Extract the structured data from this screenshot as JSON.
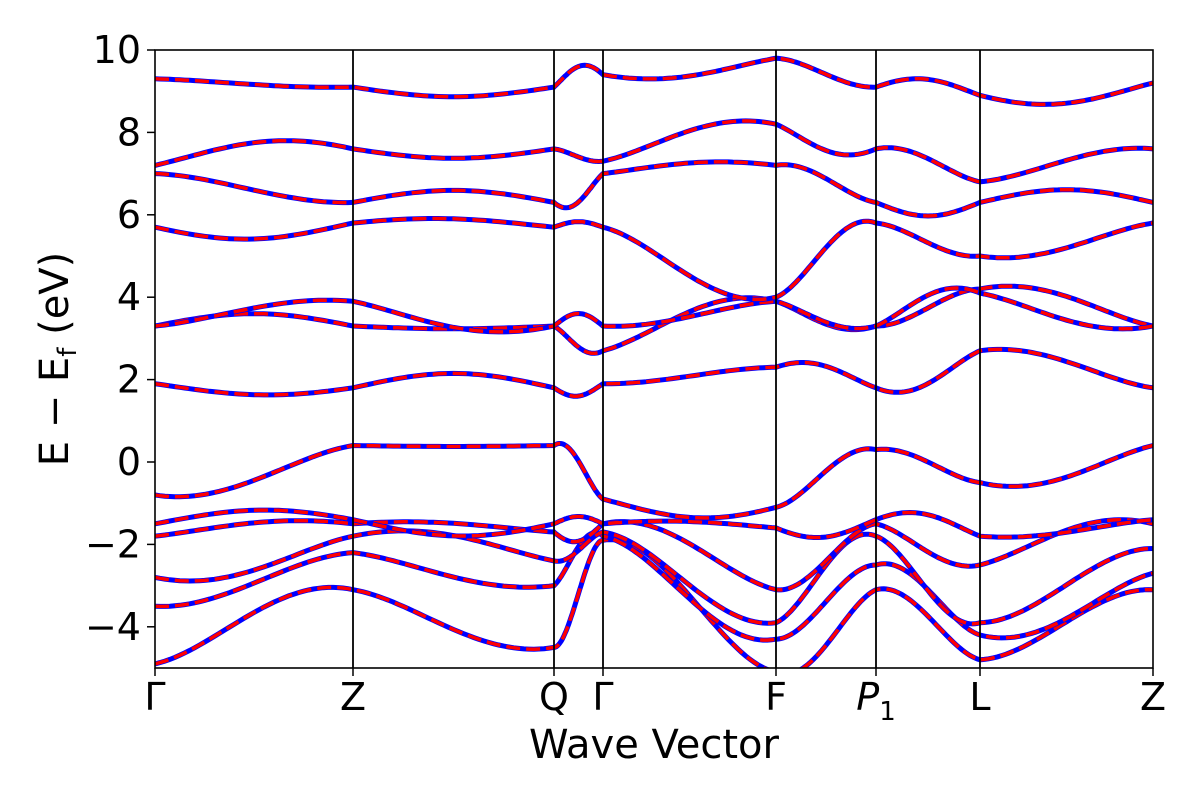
{
  "chart_data": {
    "type": "line",
    "title": "",
    "xlabel": "Wave Vector",
    "ylabel": "E − E",
    "ylabel_sub": "f",
    "ylabel_unit": " (eV)",
    "ylim": [
      -5,
      10
    ],
    "yticks": [
      {
        "value": 10,
        "label": "10"
      },
      {
        "value": 8,
        "label": "8"
      },
      {
        "value": 6,
        "label": "6"
      },
      {
        "value": 4,
        "label": "4"
      },
      {
        "value": 2,
        "label": "2"
      },
      {
        "value": 0,
        "label": "0"
      },
      {
        "value": -2,
        "label": "−2"
      },
      {
        "value": -4,
        "label": "−4"
      }
    ],
    "kpath": [
      {
        "label": "Γ",
        "sub": ""
      },
      {
        "label": "Z",
        "sub": ""
      },
      {
        "label": "Q",
        "sub": ""
      },
      {
        "label": "Γ",
        "sub": ""
      },
      {
        "label": "F",
        "sub": ""
      },
      {
        "label": "P",
        "sub": "1",
        "italic": true
      },
      {
        "label": "L",
        "sub": ""
      },
      {
        "label": "Z",
        "sub": ""
      }
    ],
    "line_colors": {
      "overlay_solid": "#ff0000",
      "underlay_dashed": "#0000ff"
    },
    "grid": false,
    "legend": "none",
    "bands": [
      {
        "name": "",
        "x": [
          0,
          1,
          2,
          3,
          4,
          5,
          6,
          7
        ],
        "y": [
          -4.9,
          -3.1,
          -4.5,
          -1.9,
          -5.1,
          -3.1,
          -4.8,
          -3.1
        ]
      },
      {
        "name": "",
        "x": [
          0,
          1,
          2,
          3,
          4,
          5,
          6,
          7
        ],
        "y": [
          -3.5,
          -2.2,
          -3.0,
          -1.8,
          -4.3,
          -2.5,
          -4.2,
          -2.7
        ]
      },
      {
        "name": "",
        "x": [
          0,
          1,
          2,
          3,
          4,
          5,
          6,
          7
        ],
        "y": [
          -2.8,
          -1.8,
          -2.4,
          -1.7,
          -3.9,
          -1.8,
          -3.9,
          -2.1
        ]
      },
      {
        "name": "",
        "x": [
          0,
          1,
          2,
          3,
          4,
          5,
          6,
          7
        ],
        "y": [
          -1.8,
          -1.5,
          -1.7,
          -1.5,
          -3.1,
          -1.5,
          -2.5,
          -1.5
        ]
      },
      {
        "name": "",
        "x": [
          0,
          1,
          2,
          3,
          4,
          5,
          6,
          7
        ],
        "y": [
          -1.5,
          -1.4,
          -1.5,
          -1.5,
          -1.6,
          -1.4,
          -1.8,
          -1.4
        ]
      },
      {
        "name": "",
        "x": [
          0,
          1,
          2,
          3,
          4,
          5,
          6,
          7
        ],
        "y": [
          -0.8,
          0.4,
          0.4,
          -0.9,
          -1.1,
          0.3,
          -0.5,
          0.4
        ]
      },
      {
        "name": "",
        "x": [
          0,
          1,
          2,
          3,
          4,
          5,
          6,
          7
        ],
        "y": [
          1.9,
          1.8,
          1.8,
          1.9,
          2.3,
          1.8,
          2.7,
          1.8
        ]
      },
      {
        "name": "",
        "x": [
          0,
          1,
          2,
          3,
          4,
          5,
          6,
          7
        ],
        "y": [
          3.3,
          3.3,
          3.3,
          2.7,
          3.9,
          3.3,
          4.2,
          3.3
        ]
      },
      {
        "name": "",
        "x": [
          0,
          1,
          2,
          3,
          4,
          5,
          6,
          7
        ],
        "y": [
          3.3,
          3.9,
          3.3,
          3.3,
          3.9,
          3.3,
          4.1,
          3.3
        ]
      },
      {
        "name": "",
        "x": [
          0,
          1,
          2,
          3,
          4,
          5,
          6,
          7
        ],
        "y": [
          5.7,
          5.8,
          5.7,
          5.7,
          4.0,
          5.8,
          5.0,
          5.8
        ]
      },
      {
        "name": "",
        "x": [
          0,
          1,
          2,
          3,
          4,
          5,
          6,
          7
        ],
        "y": [
          7.0,
          6.3,
          6.3,
          7.0,
          7.2,
          6.3,
          6.3,
          6.3
        ]
      },
      {
        "name": "",
        "x": [
          0,
          1,
          2,
          3,
          4,
          5,
          6,
          7
        ],
        "y": [
          7.2,
          7.6,
          7.6,
          7.3,
          8.2,
          7.6,
          6.8,
          7.6
        ]
      },
      {
        "name": "",
        "x": [
          0,
          1,
          2,
          3,
          4,
          5,
          6,
          7
        ],
        "y": [
          9.3,
          9.1,
          9.1,
          9.4,
          9.8,
          9.1,
          8.9,
          9.2
        ]
      }
    ]
  }
}
